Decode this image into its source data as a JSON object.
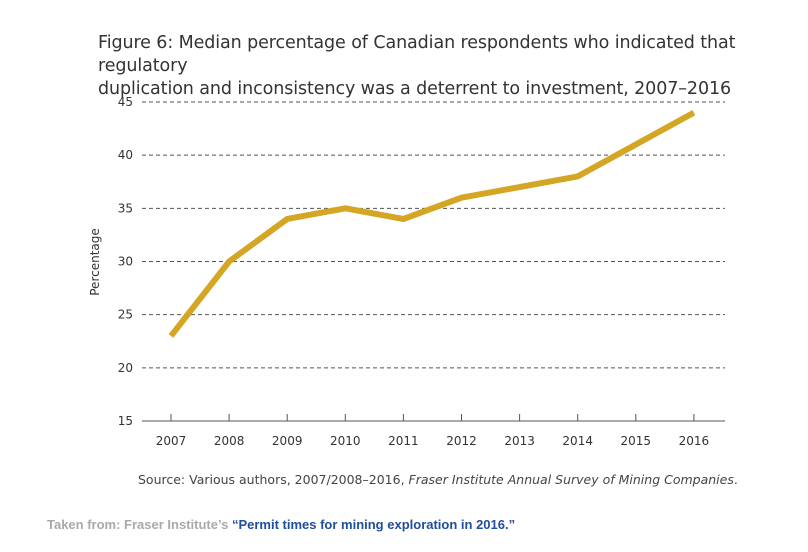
{
  "chart_data": {
    "type": "line",
    "title_line1": "Figure 6: Median percentage of Canadian respondents who indicated that regulatory",
    "title_line2": "duplication and inconsistency was a deterrent to investment, 2007–2016",
    "ylabel": "Percentage",
    "xlabel": "",
    "x": [
      "2007",
      "2008",
      "2009",
      "2010",
      "2011",
      "2012",
      "2013",
      "2014",
      "2015",
      "2016"
    ],
    "series": [
      {
        "values": [
          23,
          30,
          34,
          35,
          34,
          36,
          37,
          38,
          41,
          44
        ]
      }
    ],
    "ylim": [
      15,
      45
    ],
    "yticks": [
      15,
      20,
      25,
      30,
      35,
      40,
      45
    ],
    "grid": "dashed horizontal",
    "line_color": "#d4a624"
  },
  "caption": {
    "prefix": "Source: Various authors, 2007/2008–2016, ",
    "italic": "Fraser Institute Annual Survey of Mining Companies",
    "suffix": "."
  },
  "footer": {
    "prefix": "Taken from: Fraser Institute’s ",
    "link_text": "“Permit times for mining exploration in 2016.”"
  }
}
